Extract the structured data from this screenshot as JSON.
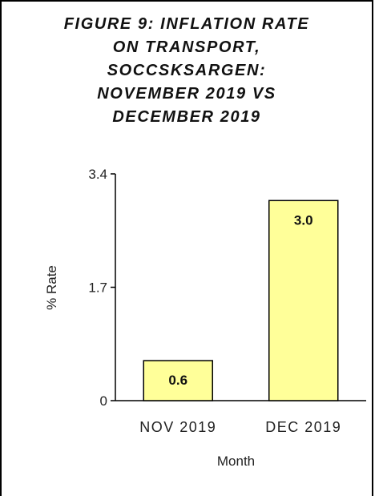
{
  "chart_data": {
    "type": "bar",
    "title": "FIGURE 9: INFLATION RATE ON TRANSPORT, SOCCSKSARGEN: NOVEMBER 2019 VS DECEMBER 2019",
    "categories": [
      "NOV 2019",
      "DEC 2019"
    ],
    "values": [
      0.6,
      3.0
    ],
    "data_labels": [
      "0.6",
      "3.0"
    ],
    "xlabel": "Month",
    "ylabel": "% Rate",
    "ylim": [
      0,
      3.4
    ],
    "yticks": [
      0,
      1.7,
      3.4
    ],
    "ytick_labels": [
      "0",
      "1.7",
      "3.4"
    ],
    "grid": false,
    "bar_color": "#ffff99",
    "bar_edge_color": "#000000"
  }
}
